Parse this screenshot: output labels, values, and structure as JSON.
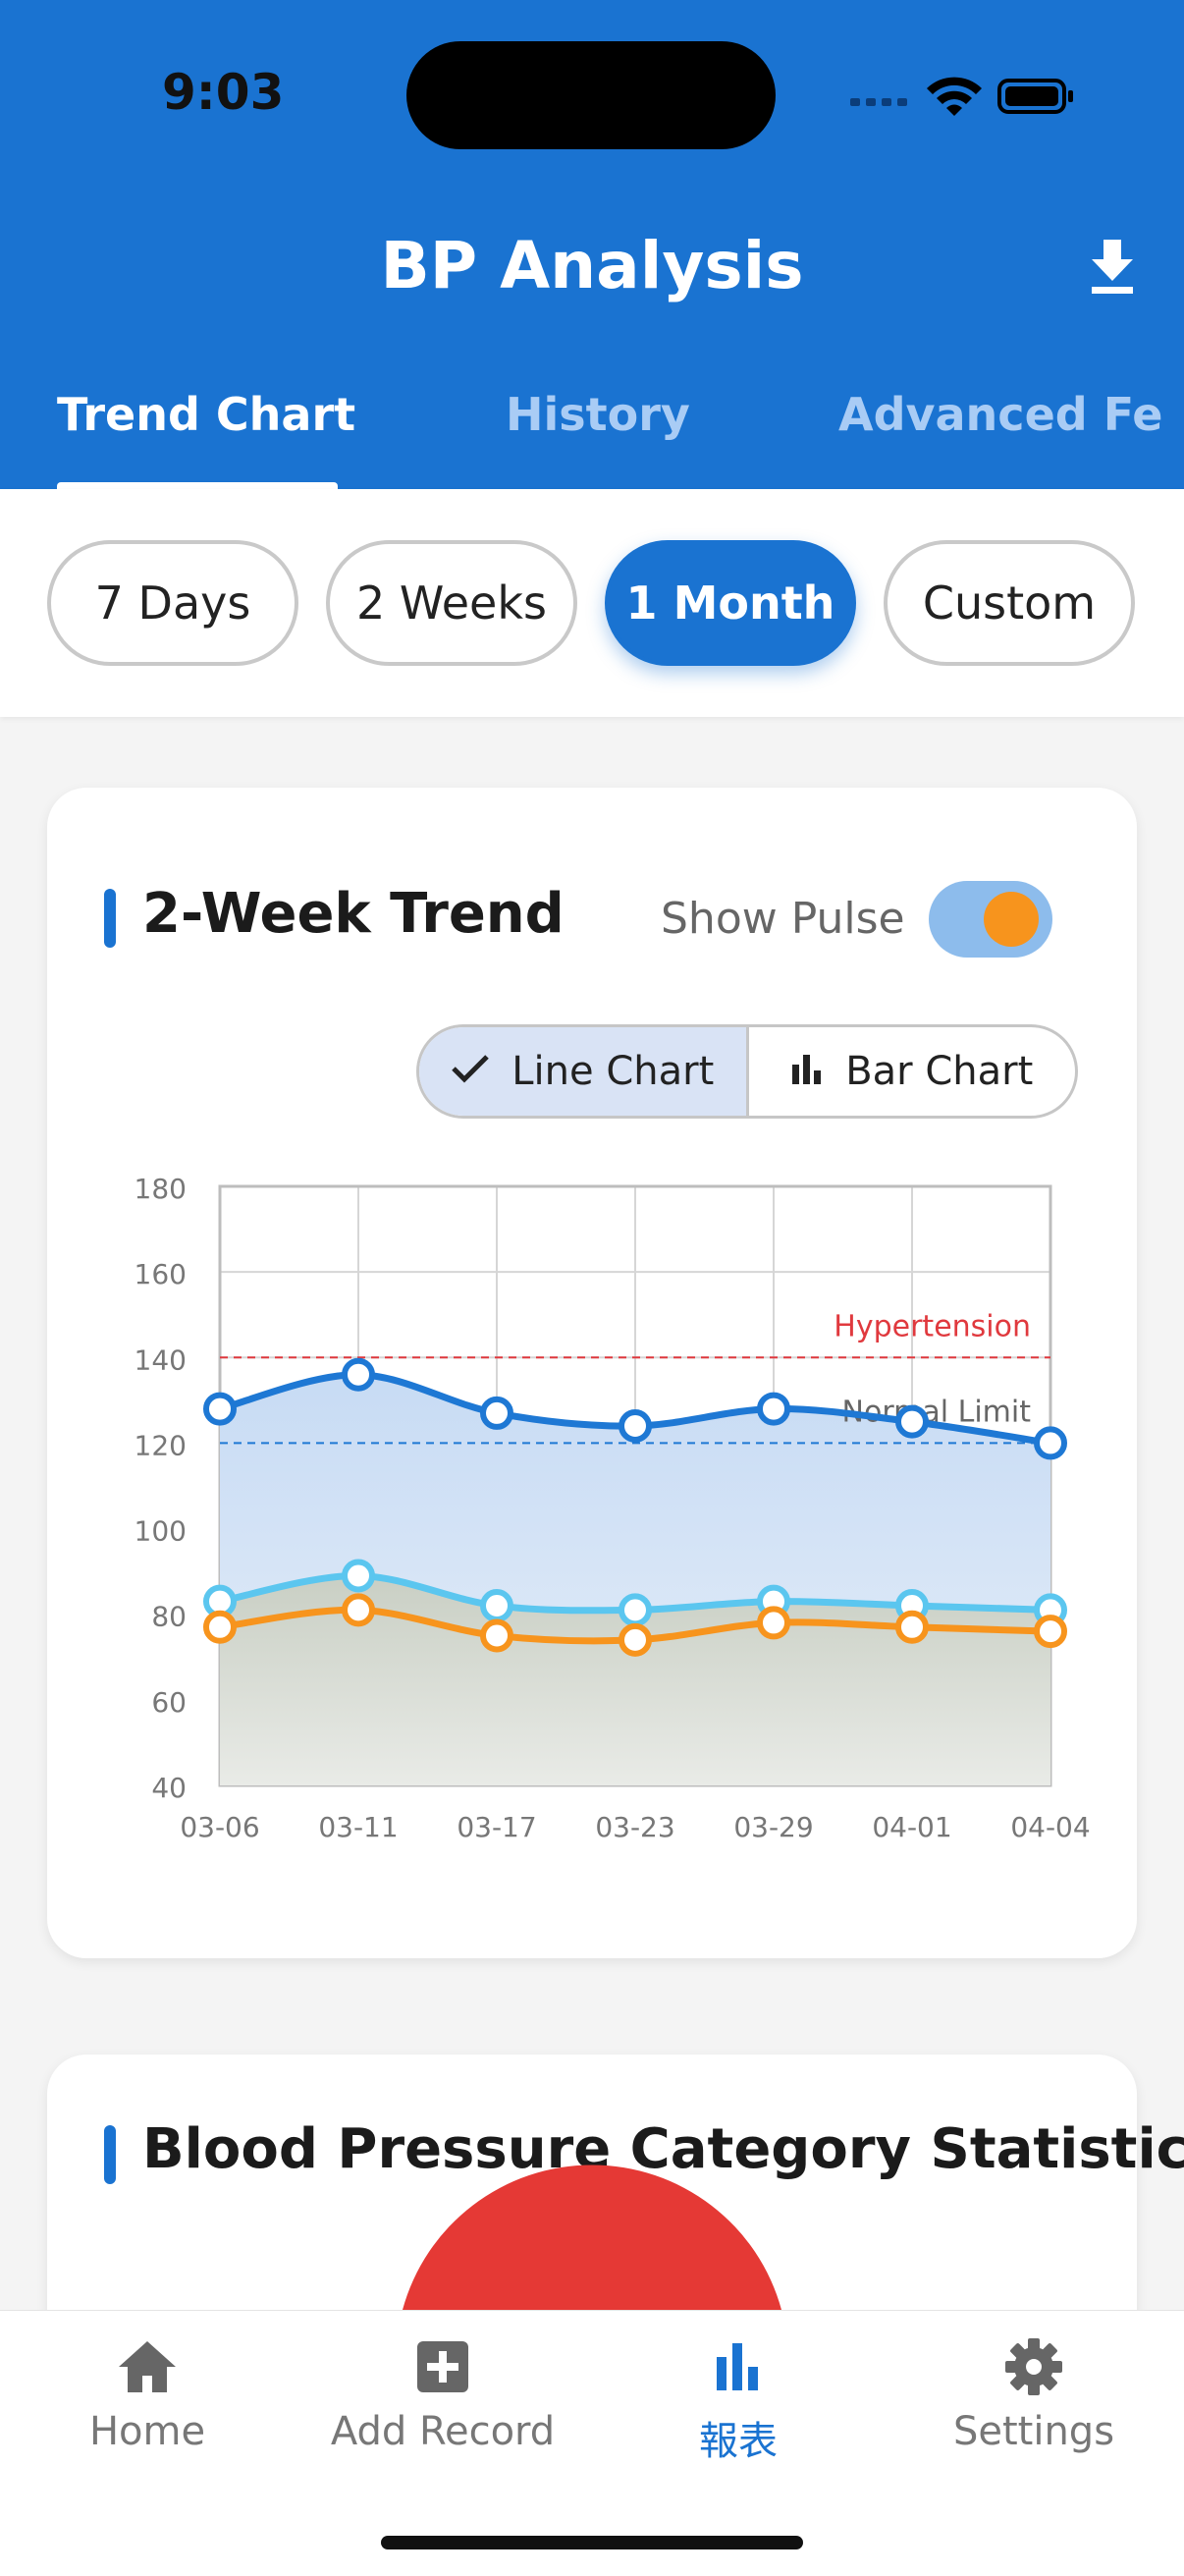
{
  "status_bar": {
    "time": "9:03"
  },
  "header": {
    "title": "BP Analysis",
    "tabs": [
      {
        "label": "Trend Chart",
        "active": true
      },
      {
        "label": "History",
        "active": false
      },
      {
        "label": "Advanced Fe",
        "active": false
      }
    ]
  },
  "ranges": [
    {
      "label": "7 Days",
      "active": false
    },
    {
      "label": "2 Weeks",
      "active": false
    },
    {
      "label": "1 Month",
      "active": true
    },
    {
      "label": "Custom",
      "active": false
    }
  ],
  "trend_card": {
    "title": "2-Week Trend",
    "pulse_label": "Show Pulse",
    "pulse_on": true,
    "line_chart_label": "Line Chart",
    "bar_chart_label": "Bar Chart"
  },
  "stats_card": {
    "title": "Blood Pressure Category Statistics"
  },
  "bottom_nav": [
    {
      "label": "Home",
      "icon": "home-icon"
    },
    {
      "label": "Add Record",
      "icon": "add-record-icon"
    },
    {
      "label": "報表",
      "icon": "bar-chart-icon",
      "active": true
    },
    {
      "label": "Settings",
      "icon": "gear-icon"
    }
  ],
  "colors": {
    "primary": "#1a73d1",
    "systolic": "#1e78d4",
    "diastolic": "#5bc6ef",
    "pulse": "#f7941d",
    "hypertension": "#e0393e",
    "normal_limit": "#1e78d4"
  },
  "chart_data": {
    "type": "line",
    "x": [
      "03-06",
      "03-11",
      "03-17",
      "03-23",
      "03-29",
      "04-01",
      "04-04"
    ],
    "ylim": [
      40,
      180
    ],
    "yticks": [
      40,
      60,
      80,
      100,
      120,
      140,
      160,
      180
    ],
    "grid": true,
    "series": [
      {
        "key": "systolic",
        "values": [
          128,
          136,
          127,
          124,
          128,
          125,
          120
        ]
      },
      {
        "key": "diastolic",
        "values": [
          83,
          89,
          82,
          81,
          83,
          82,
          81
        ]
      },
      {
        "key": "pulse",
        "values": [
          77,
          81,
          75,
          74,
          78,
          77,
          76
        ]
      }
    ],
    "reference_lines": [
      {
        "label": "Hypertension",
        "value": 140
      },
      {
        "label": "Normal Limit",
        "value": 120
      }
    ]
  }
}
